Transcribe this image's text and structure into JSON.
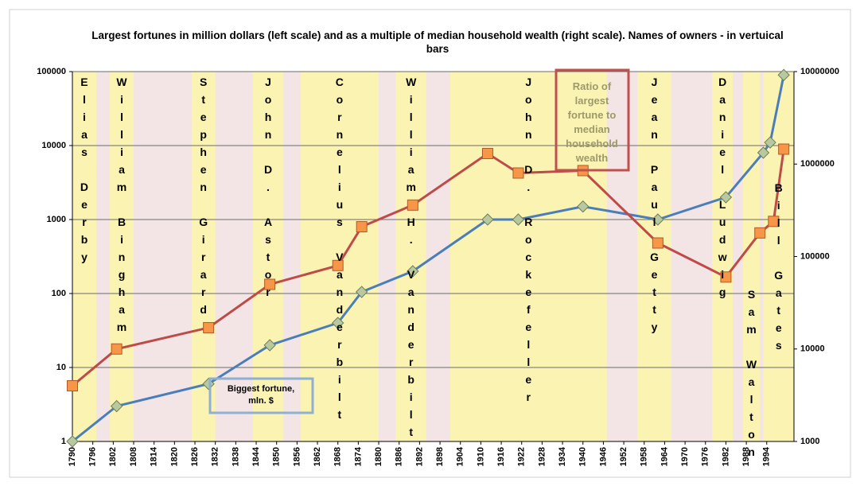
{
  "chart_data": {
    "type": "line",
    "title": "Largest fortunes in million dollars (left scale) and as a multiple of median household wealth (right scale). Names of owners - in vertuical bars",
    "log_scale": true,
    "grid": true,
    "xlim": [
      1790,
      2002
    ],
    "xticks": [
      1790,
      1796,
      1802,
      1808,
      1814,
      1820,
      1826,
      1832,
      1838,
      1844,
      1850,
      1856,
      1862,
      1868,
      1874,
      1880,
      1886,
      1892,
      1898,
      1904,
      1910,
      1916,
      1922,
      1928,
      1934,
      1940,
      1946,
      1952,
      1958,
      1964,
      1970,
      1976,
      1982,
      1988,
      1994
    ],
    "ylim": [
      1,
      100000
    ],
    "yticks": [
      1,
      10,
      100,
      1000,
      10000,
      100000
    ],
    "y2lim": [
      1000,
      10000000
    ],
    "y2ticks": [
      1000,
      10000,
      100000,
      1000000,
      10000000
    ],
    "bands": [
      {
        "name": "Elias Derby",
        "from": 1790,
        "to": 1797
      },
      {
        "name": "William Bingham",
        "from": 1801,
        "to": 1808
      },
      {
        "name": "Stephen Girard",
        "from": 1825,
        "to": 1832
      },
      {
        "name": "John D. Astor",
        "from": 1843,
        "to": 1852
      },
      {
        "name": "Cornelius Vanderbilt",
        "from": 1857,
        "to": 1880
      },
      {
        "name": "William H. Vanderbilt",
        "from": 1885,
        "to": 1894
      },
      {
        "name": "John D. Rockefeller",
        "from": 1901,
        "to": 1947
      },
      {
        "name": "Jean Paul Getty",
        "from": 1956,
        "to": 1966
      },
      {
        "name": "Daniel Ludwig",
        "from": 1978,
        "to": 1984
      },
      {
        "name": "Sam Walton",
        "from": 1987,
        "to": 1992
      },
      {
        "name": "Bill Gates",
        "from": 1993,
        "to": 2002
      }
    ],
    "series": [
      {
        "name": "Biggest fortune, mln. $",
        "color": "#4a7ebb",
        "marker_color": "#b9c99f",
        "x": [
          1790,
          1803,
          1830,
          1848,
          1868,
          1875,
          1890,
          1912,
          1921,
          1940,
          1962,
          1982,
          1993,
          1995,
          1999
        ],
        "values": [
          1,
          3,
          6,
          20,
          40,
          105,
          200,
          1000,
          1000,
          1500,
          1000,
          2000,
          8000,
          11000,
          90000
        ]
      },
      {
        "name": "Ratio of largest fortune to median household wealth",
        "color": "#be4b48",
        "marker_color": "#f79646",
        "axis": "y2",
        "x": [
          1790,
          1803,
          1830,
          1848,
          1868,
          1875,
          1890,
          1912,
          1921,
          1940,
          1962,
          1982,
          1992,
          1996,
          1999
        ],
        "values": [
          4000,
          10000,
          17000,
          50000,
          80000,
          210000,
          360000,
          1300000,
          800000,
          850000,
          140000,
          60000,
          180000,
          240000,
          1450000
        ]
      }
    ]
  }
}
